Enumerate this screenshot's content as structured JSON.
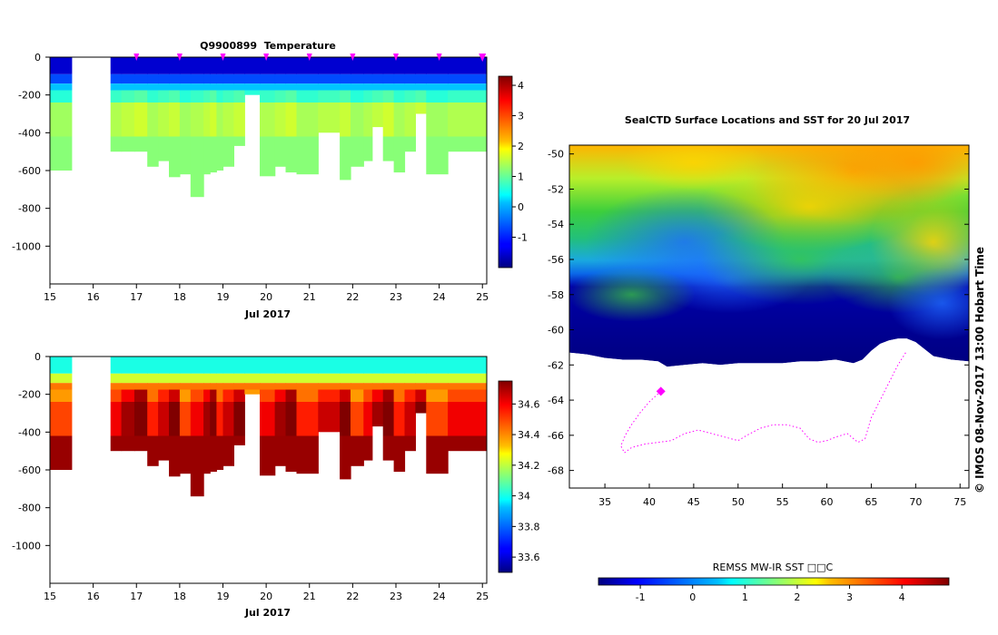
{
  "chart_data": [
    {
      "type": "heatmap",
      "title": "Q9900899  Temperature",
      "xlabel": "Jul 2017",
      "ylabel": "",
      "xlim": [
        15,
        25.1
      ],
      "ylim": [
        -1200,
        0
      ],
      "x_ticks": [
        15,
        16,
        17,
        18,
        19,
        20,
        21,
        22,
        23,
        24,
        25
      ],
      "y_ticks": [
        0,
        -200,
        -400,
        -600,
        -800,
        -1000
      ],
      "colorbar": {
        "range": [
          -2,
          4.3
        ],
        "ticks": [
          -1,
          0,
          1,
          2,
          3,
          4
        ]
      },
      "layers": {
        "surface": -1.5,
        "cline": 0.0,
        "deep": 1.5,
        "bottom": 1.2
      },
      "profile_markers": [
        17,
        18,
        19,
        20,
        21,
        22,
        23,
        24,
        25
      ],
      "profiles": [
        [
          15.0,
          15.5,
          600
        ],
        [
          16.4,
          16.65,
          500
        ],
        [
          16.65,
          16.95,
          500
        ],
        [
          16.95,
          17.25,
          500
        ],
        [
          17.25,
          17.5,
          580
        ],
        [
          17.5,
          17.75,
          550
        ],
        [
          17.75,
          18.0,
          635
        ],
        [
          18.0,
          18.25,
          620
        ],
        [
          18.25,
          18.55,
          740
        ],
        [
          18.55,
          18.7,
          620
        ],
        [
          18.7,
          18.85,
          610
        ],
        [
          18.85,
          19.0,
          600
        ],
        [
          19.0,
          19.25,
          580
        ],
        [
          19.25,
          19.5,
          470
        ],
        [
          19.5,
          19.85,
          200
        ],
        [
          19.85,
          20.2,
          630
        ],
        [
          20.2,
          20.45,
          580
        ],
        [
          20.45,
          20.7,
          610
        ],
        [
          20.7,
          21.2,
          620
        ],
        [
          21.2,
          21.7,
          400
        ],
        [
          21.7,
          21.95,
          650
        ],
        [
          21.95,
          22.25,
          580
        ],
        [
          22.25,
          22.45,
          550
        ],
        [
          22.45,
          22.7,
          370
        ],
        [
          22.7,
          22.95,
          550
        ],
        [
          22.95,
          23.2,
          610
        ],
        [
          23.2,
          23.45,
          500
        ],
        [
          23.45,
          23.7,
          300
        ],
        [
          23.7,
          24.2,
          620
        ],
        [
          24.2,
          25.1,
          500
        ]
      ]
    },
    {
      "type": "heatmap",
      "title": "",
      "xlabel": "Jul 2017",
      "ylabel": "",
      "xlim": [
        15,
        25.1
      ],
      "ylim": [
        -1200,
        0
      ],
      "x_ticks": [
        15,
        16,
        17,
        18,
        19,
        20,
        21,
        22,
        23,
        24,
        25
      ],
      "y_ticks": [
        0,
        -200,
        -400,
        -600,
        -800,
        -1000
      ],
      "colorbar": {
        "range": [
          33.5,
          34.75
        ],
        "ticks": [
          33.6,
          33.8,
          34,
          34.2,
          34.4,
          34.6
        ]
      },
      "layers": {
        "surface": 34.0,
        "cline": 34.45,
        "deep": 34.66,
        "bottom": 34.72
      },
      "profile_markers": [],
      "profiles": "same as temperature section"
    },
    {
      "type": "heatmap",
      "title": "SealCTD Surface Locations and SST for 20 Jul 2017",
      "xlabel": "",
      "ylabel": "",
      "xlim": [
        31,
        76
      ],
      "ylim": [
        -69,
        -49.5
      ],
      "x_ticks": [
        35,
        40,
        45,
        50,
        55,
        60,
        65,
        70,
        75
      ],
      "y_ticks": [
        -50,
        -52,
        -54,
        -56,
        -58,
        -60,
        -62,
        -64,
        -66,
        -68
      ],
      "colorbar": {
        "label": "REMSS MW-IR SST □□C",
        "range": [
          -1.8,
          4.9
        ],
        "ticks": [
          -1,
          0,
          1,
          2,
          3,
          4
        ]
      },
      "ice_edge": [
        [
          31,
          -61.3
        ],
        [
          33,
          -61.4
        ],
        [
          35,
          -61.6
        ],
        [
          37,
          -61.7
        ],
        [
          39,
          -61.7
        ],
        [
          41,
          -61.8
        ],
        [
          42,
          -62.1
        ],
        [
          44,
          -62.0
        ],
        [
          46,
          -61.9
        ],
        [
          48,
          -62.0
        ],
        [
          50,
          -61.9
        ],
        [
          53,
          -61.9
        ],
        [
          55,
          -61.9
        ],
        [
          57,
          -61.8
        ],
        [
          59,
          -61.8
        ],
        [
          61,
          -61.7
        ],
        [
          63,
          -61.9
        ],
        [
          64,
          -61.7
        ],
        [
          65,
          -61.2
        ],
        [
          66,
          -60.8
        ],
        [
          67,
          -60.6
        ],
        [
          68,
          -60.5
        ],
        [
          69,
          -60.5
        ],
        [
          70,
          -60.7
        ],
        [
          71,
          -61.1
        ],
        [
          72,
          -61.5
        ],
        [
          74,
          -61.7
        ],
        [
          76,
          -61.8
        ]
      ],
      "seal_track": [
        [
          41.3,
          -63.5
        ],
        [
          40,
          -64.1
        ],
        [
          39,
          -64.7
        ],
        [
          38,
          -65.4
        ],
        [
          37.3,
          -66.0
        ],
        [
          36.8,
          -66.6
        ],
        [
          37.2,
          -67.0
        ],
        [
          38,
          -66.7
        ],
        [
          39.5,
          -66.5
        ],
        [
          41,
          -66.4
        ],
        [
          42.5,
          -66.3
        ],
        [
          44,
          -65.9
        ],
        [
          45.5,
          -65.7
        ],
        [
          47,
          -65.9
        ],
        [
          48.5,
          -66.1
        ],
        [
          50,
          -66.3
        ],
        [
          51,
          -66.0
        ],
        [
          52.5,
          -65.6
        ],
        [
          54,
          -65.4
        ],
        [
          55.5,
          -65.4
        ],
        [
          57,
          -65.6
        ],
        [
          58,
          -66.2
        ],
        [
          59,
          -66.4
        ],
        [
          60,
          -66.3
        ],
        [
          61,
          -66.1
        ],
        [
          62.3,
          -65.9
        ],
        [
          63.5,
          -66.4
        ],
        [
          64.3,
          -66.2
        ],
        [
          65,
          -65.0
        ],
        [
          66,
          -64.0
        ],
        [
          67,
          -63.0
        ],
        [
          68,
          -62.0
        ],
        [
          69,
          -61.2
        ]
      ],
      "last_position": [
        41.3,
        -63.5
      ],
      "footer": "© IMOS 08-Nov-2017 13:00 Hobart Time"
    }
  ]
}
